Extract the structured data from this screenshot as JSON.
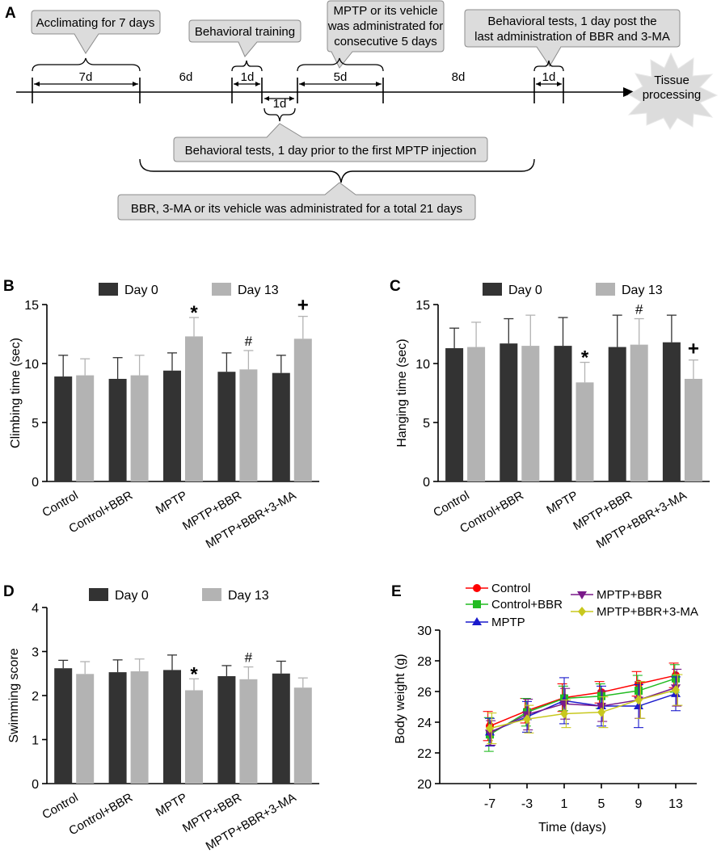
{
  "colors": {
    "dark_bar": "#333333",
    "light_bar": "#b3b3b3",
    "callout_fill": "#dcdcdc",
    "callout_stroke": "#8c8c8c",
    "control": "#ff0000",
    "control_bbr": "#22bb22",
    "mptp": "#1a1acc",
    "mptp_bbr": "#7a1a8a",
    "mptp_bbr_3ma": "#c8c81e"
  },
  "timeline": {
    "panel_label": "A",
    "callouts": {
      "acclimating": "Acclimating for 7 days",
      "training": "Behavioral training",
      "mptp_line1": "MPTP or its vehicle",
      "mptp_line2": "was administrated for",
      "mptp_line3": "consecutive 5 days",
      "post_line1": "Behavioral tests, 1 day post the",
      "post_line2": "last administration of BBR and 3-MA",
      "prior": "Behavioral tests, 1 day prior to the first MPTP injection",
      "bbr": "BBR, 3-MA or its vehicle was administrated for a total 21 days"
    },
    "durations": {
      "d7": "7d",
      "d6": "6d",
      "d1_training": "1d",
      "d1_prior": "1d",
      "d5": "5d",
      "d8": "8d",
      "d1_post": "1d"
    },
    "end_label_line1": "Tissue",
    "end_label_line2": "processing"
  },
  "chart_data": [
    {
      "panel": "B",
      "type": "bar",
      "title": "",
      "ylabel": "Climbing time (sec)",
      "xlabel": "",
      "ylim": [
        0,
        15
      ],
      "yticks": [
        "0",
        "5",
        "10",
        "15"
      ],
      "categories": [
        "Control",
        "Control+BBR",
        "MPTP",
        "MPTP+BBR",
        "MPTP+BBR+3-MA"
      ],
      "legend": [
        "Day 0",
        "Day 13"
      ],
      "series": [
        {
          "name": "Day 0",
          "values": [
            8.9,
            8.7,
            9.4,
            9.3,
            9.2
          ],
          "errors": [
            1.8,
            1.8,
            1.5,
            1.6,
            1.5
          ]
        },
        {
          "name": "Day 13",
          "values": [
            9.0,
            9.0,
            12.3,
            9.5,
            12.1
          ],
          "errors": [
            1.4,
            1.7,
            1.6,
            1.6,
            1.9
          ]
        }
      ],
      "annotations": [
        {
          "series": 1,
          "index": 2,
          "text": "*"
        },
        {
          "series": 1,
          "index": 3,
          "text": "#"
        },
        {
          "series": 1,
          "index": 4,
          "text": "+"
        }
      ]
    },
    {
      "panel": "C",
      "type": "bar",
      "title": "",
      "ylabel": "Hanging time (sec)",
      "xlabel": "",
      "ylim": [
        0,
        15
      ],
      "yticks": [
        "0",
        "5",
        "10",
        "15"
      ],
      "categories": [
        "Control",
        "Control+BBR",
        "MPTP",
        "MPTP+BBR",
        "MPTP+BBR+3-MA"
      ],
      "legend": [
        "Day 0",
        "Day 13"
      ],
      "series": [
        {
          "name": "Day 0",
          "values": [
            11.3,
            11.7,
            11.5,
            11.4,
            11.8
          ],
          "errors": [
            1.7,
            2.1,
            2.4,
            2.7,
            2.3
          ]
        },
        {
          "name": "Day 13",
          "values": [
            11.4,
            11.5,
            8.4,
            11.6,
            8.7
          ],
          "errors": [
            2.1,
            2.6,
            1.7,
            2.2,
            1.6
          ]
        }
      ],
      "annotations": [
        {
          "series": 1,
          "index": 2,
          "text": "*"
        },
        {
          "series": 1,
          "index": 3,
          "text": "#"
        },
        {
          "series": 1,
          "index": 4,
          "text": "+"
        }
      ]
    },
    {
      "panel": "D",
      "type": "bar",
      "title": "",
      "ylabel": "Swimming score",
      "xlabel": "",
      "ylim": [
        0,
        4
      ],
      "yticks": [
        "0",
        "1",
        "2",
        "3",
        "4"
      ],
      "categories": [
        "Control",
        "Control+BBR",
        "MPTP",
        "MPTP+BBR",
        "MPTP+BBR+3-MA"
      ],
      "legend": [
        "Day 0",
        "Day 13"
      ],
      "series": [
        {
          "name": "Day 0",
          "values": [
            2.62,
            2.53,
            2.58,
            2.44,
            2.5
          ],
          "errors": [
            0.18,
            0.28,
            0.34,
            0.24,
            0.28
          ]
        },
        {
          "name": "Day 13",
          "values": [
            2.49,
            2.55,
            2.12,
            2.37,
            2.18
          ],
          "errors": [
            0.28,
            0.28,
            0.26,
            0.28,
            0.22
          ]
        }
      ],
      "annotations": [
        {
          "series": 1,
          "index": 2,
          "text": "*"
        },
        {
          "series": 1,
          "index": 3,
          "text": "#"
        }
      ]
    },
    {
      "panel": "E",
      "type": "line",
      "title": "",
      "xlabel": "Time (days)",
      "ylabel": "Body weight (g)",
      "ylim": [
        20,
        30
      ],
      "yticks": [
        "20",
        "22",
        "24",
        "26",
        "28",
        "30"
      ],
      "x": [
        "-7",
        "-3",
        "1",
        "5",
        "9",
        "13"
      ],
      "series": [
        {
          "name": "Control",
          "marker": "circle",
          "values": [
            23.75,
            24.75,
            25.6,
            25.95,
            26.5,
            27.05
          ],
          "errors": [
            0.95,
            0.8,
            0.9,
            0.7,
            0.8,
            0.8
          ]
        },
        {
          "name": "Control+BBR",
          "marker": "square",
          "values": [
            23.2,
            24.65,
            25.55,
            25.7,
            26.05,
            26.85
          ],
          "errors": [
            1.1,
            0.9,
            0.8,
            0.8,
            1.0,
            0.9
          ]
        },
        {
          "name": "MPTP",
          "marker": "triangle-up",
          "values": [
            23.35,
            24.35,
            25.4,
            25.05,
            25.05,
            25.85
          ],
          "errors": [
            0.9,
            1.0,
            1.5,
            1.3,
            1.4,
            1.1
          ]
        },
        {
          "name": "MPTP+BBR",
          "marker": "triangle-down",
          "values": [
            23.3,
            24.5,
            25.2,
            25.05,
            25.45,
            26.25
          ],
          "errors": [
            0.8,
            1.0,
            1.0,
            1.0,
            1.2,
            1.2
          ]
        },
        {
          "name": "MPTP+BBR+3-MA",
          "marker": "diamond",
          "values": [
            23.6,
            24.2,
            24.55,
            24.65,
            25.45,
            26.1
          ],
          "errors": [
            1.0,
            0.9,
            0.9,
            1.0,
            1.2,
            1.0
          ]
        }
      ]
    }
  ]
}
